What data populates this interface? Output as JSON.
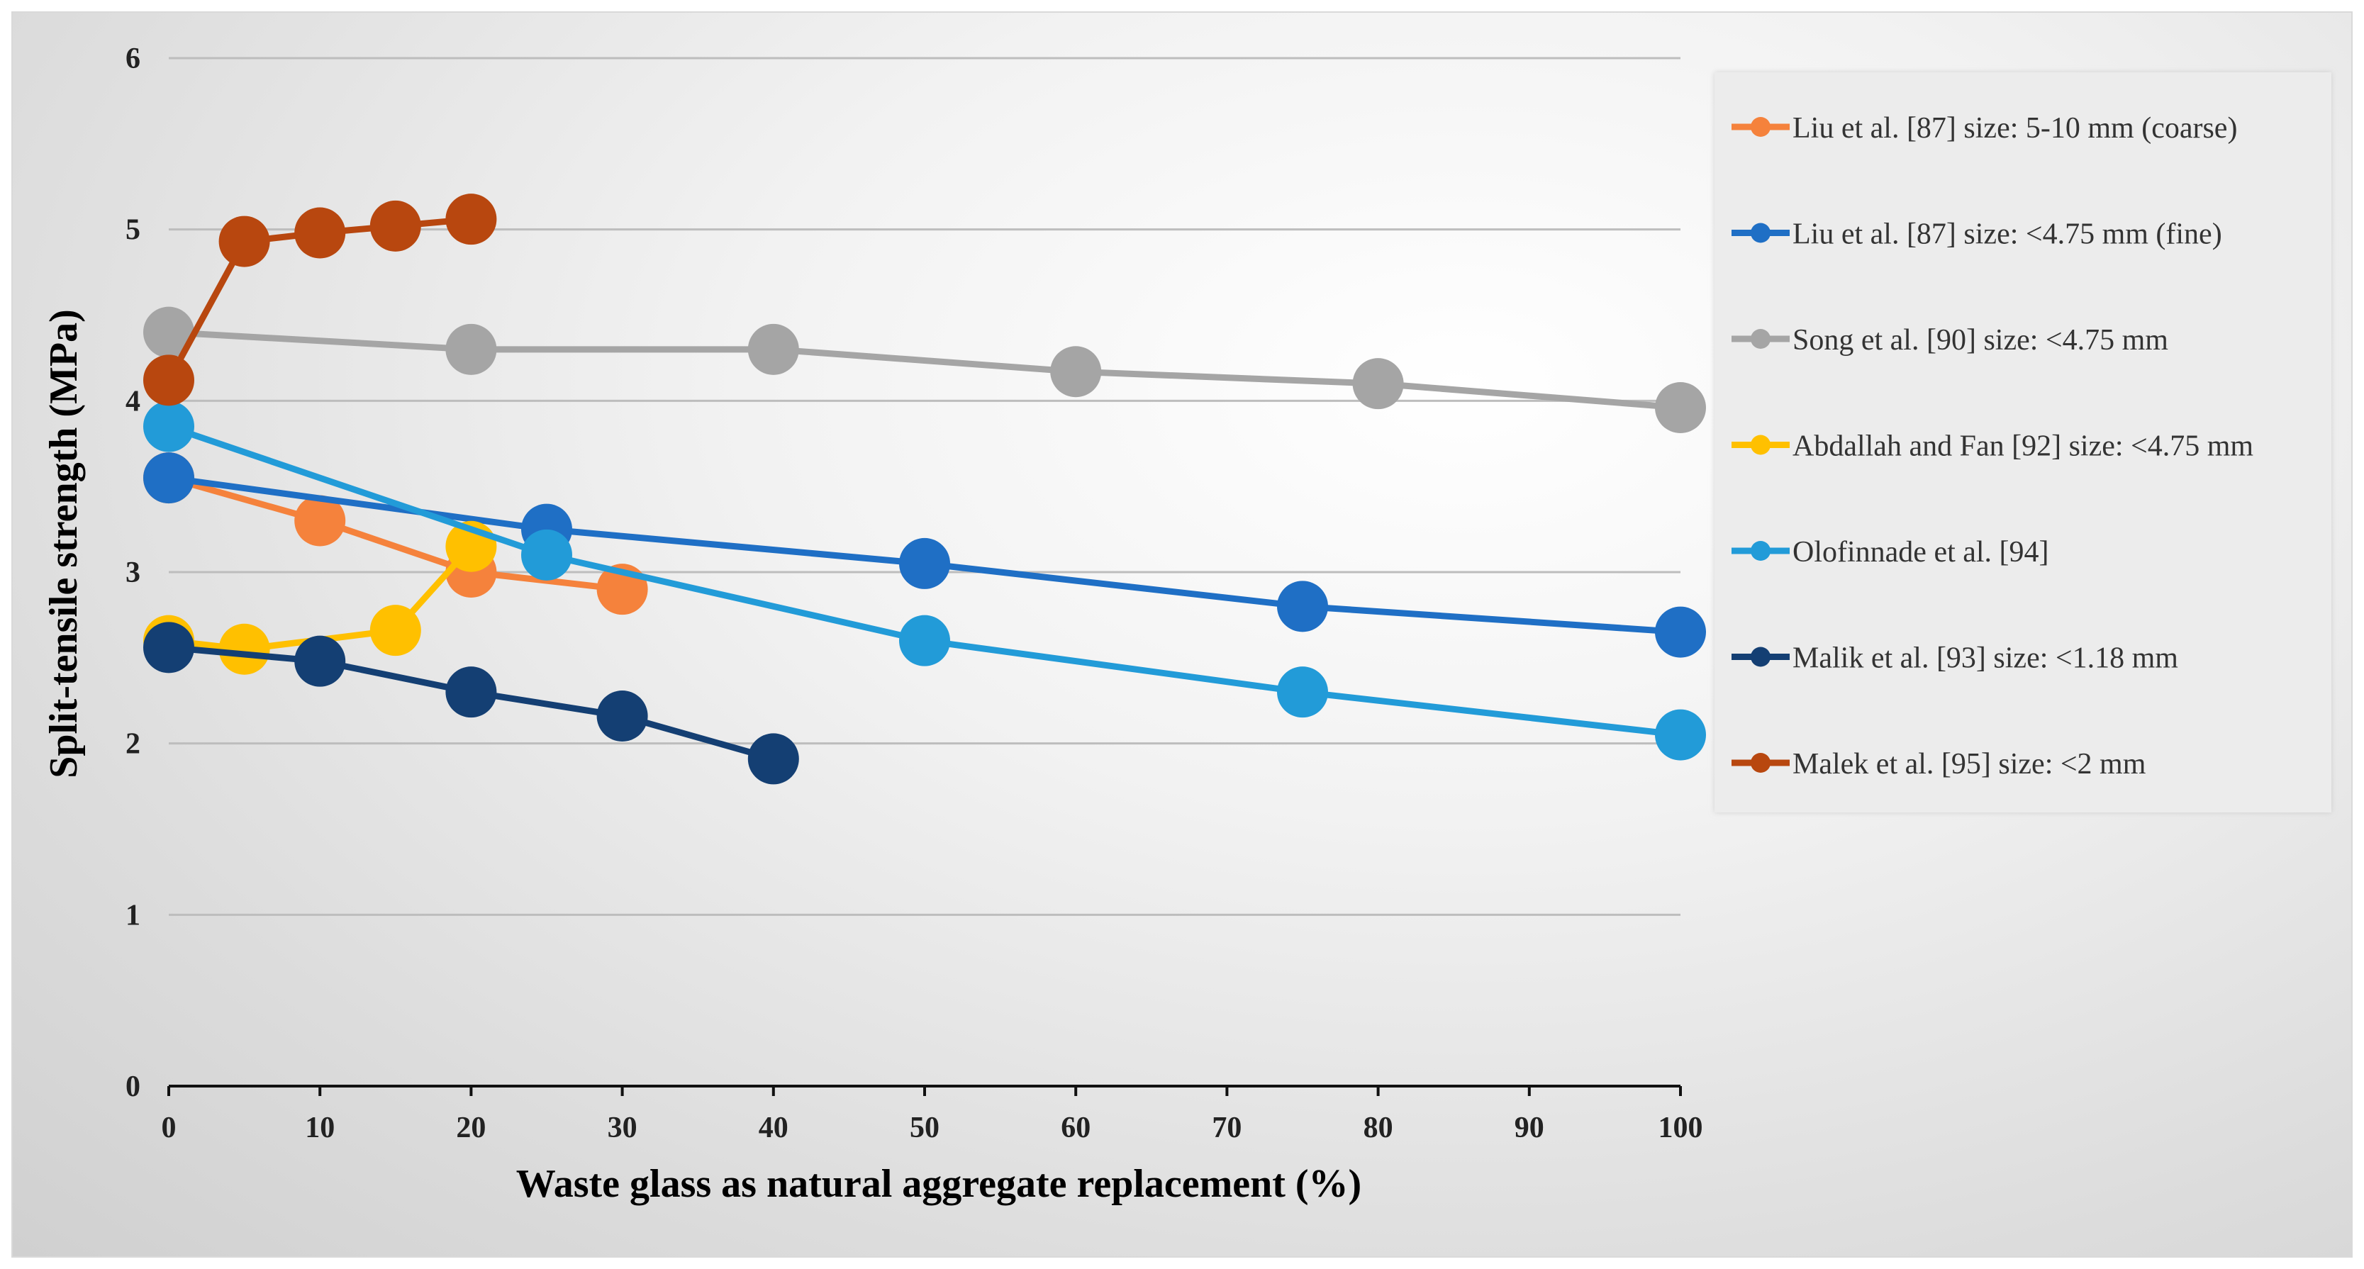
{
  "chart_data": {
    "type": "line",
    "title": "",
    "xlabel": "Waste glass as natural aggregate replacement (%)",
    "ylabel": "Split-tensile strength (MPa)",
    "xlim": [
      0,
      100
    ],
    "ylim": [
      0,
      6
    ],
    "x_ticks": [
      0,
      10,
      20,
      30,
      40,
      50,
      60,
      70,
      80,
      90,
      100
    ],
    "y_ticks": [
      0,
      1,
      2,
      3,
      4,
      5,
      6
    ],
    "grid": true,
    "legend_position": "right",
    "series": [
      {
        "name": "Liu et al. [87] size: 5-10 mm (coarse)",
        "color": "#f5823c",
        "x": [
          0,
          10,
          20,
          30
        ],
        "y": [
          3.55,
          3.3,
          3.0,
          2.9
        ]
      },
      {
        "name": "Liu et al. [87] size: <4.75 mm (fine)",
        "color": "#1f6fc5",
        "x": [
          0,
          25,
          50,
          75,
          100
        ],
        "y": [
          3.55,
          3.25,
          3.05,
          2.8,
          2.65
        ]
      },
      {
        "name": "Song et al. [90] size: <4.75 mm",
        "color": "#a5a5a5",
        "x": [
          0,
          20,
          40,
          60,
          80,
          100
        ],
        "y": [
          4.4,
          4.3,
          4.3,
          4.17,
          4.1,
          3.96
        ]
      },
      {
        "name": "Abdallah and Fan [92] size: <4.75 mm",
        "color": "#ffc000",
        "x": [
          0,
          5,
          15,
          20
        ],
        "y": [
          2.6,
          2.55,
          2.66,
          3.15
        ]
      },
      {
        "name": "Olofinnade et al. [94]",
        "color": "#229bd8",
        "x": [
          0,
          25,
          50,
          75,
          100
        ],
        "y": [
          3.85,
          3.1,
          2.6,
          2.3,
          2.05
        ]
      },
      {
        "name": "Malik et al. [93] size: <1.18 mm",
        "color": "#143f73",
        "x": [
          0,
          10,
          20,
          30,
          40
        ],
        "y": [
          2.56,
          2.48,
          2.3,
          2.16,
          1.91
        ]
      },
      {
        "name": "Malek et al. [95] size: <2 mm",
        "color": "#b8470f",
        "x": [
          0,
          5,
          10,
          15,
          20
        ],
        "y": [
          4.12,
          4.93,
          4.98,
          5.02,
          5.06
        ]
      }
    ]
  }
}
